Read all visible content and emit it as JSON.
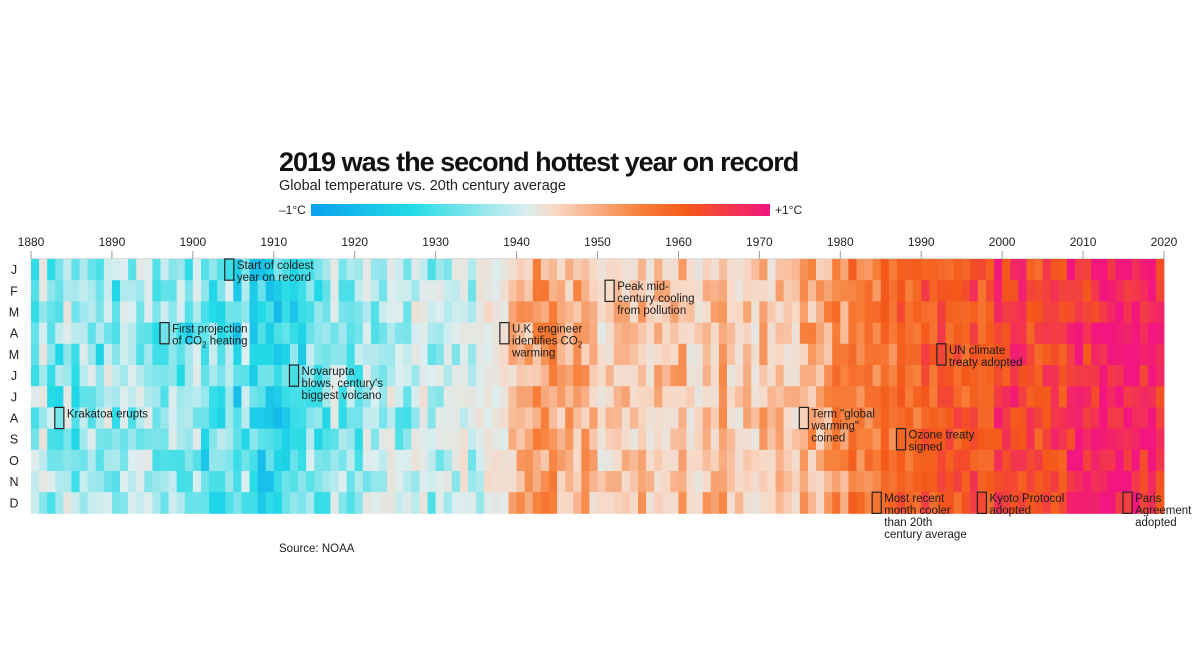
{
  "title": "2019 was the second hottest year on record",
  "subtitle": "Global temperature vs. 20th century average",
  "legend": {
    "min_label": "–1°C",
    "max_label": "+1°C"
  },
  "source": "Source: NOAA",
  "chart_data": {
    "type": "heatmap",
    "title": "2019 was the second hottest year on record",
    "subtitle": "Global temperature vs. 20th century average",
    "x_range": [
      1880,
      2020
    ],
    "x_ticks": [
      1880,
      1890,
      1900,
      1910,
      1920,
      1930,
      1940,
      1950,
      1960,
      1970,
      1980,
      1990,
      2000,
      2010,
      2020
    ],
    "rows": [
      "J",
      "F",
      "M",
      "A",
      "M",
      "J",
      "J",
      "A",
      "S",
      "O",
      "N",
      "D"
    ],
    "color_scale": {
      "min": -1,
      "max": 1,
      "unit": "°C",
      "colors": [
        "#0aa0ee",
        "#23dbe6",
        "#dbeef0",
        "#f8d8c6",
        "#f77f39",
        "#f4581a",
        "#f2167e"
      ]
    },
    "trend_anchors": [
      {
        "year": 1880,
        "anomaly": -0.42
      },
      {
        "year": 1900,
        "anomaly": -0.5
      },
      {
        "year": 1910,
        "anomaly": -0.62
      },
      {
        "year": 1920,
        "anomaly": -0.42
      },
      {
        "year": 1935,
        "anomaly": -0.3
      },
      {
        "year": 1940,
        "anomaly": 0.08
      },
      {
        "year": 1945,
        "anomaly": 0.18
      },
      {
        "year": 1950,
        "anomaly": 0.02
      },
      {
        "year": 1960,
        "anomaly": 0.08
      },
      {
        "year": 1970,
        "anomaly": 0.02
      },
      {
        "year": 1977,
        "anomaly": 0.18
      },
      {
        "year": 1980,
        "anomaly": 0.38
      },
      {
        "year": 1990,
        "anomaly": 0.55
      },
      {
        "year": 2000,
        "anomaly": 0.72
      },
      {
        "year": 2010,
        "anomaly": 0.8
      },
      {
        "year": 2016,
        "anomaly": 0.98
      },
      {
        "year": 2020,
        "anomaly": 0.9
      }
    ],
    "annotations": [
      {
        "year": 1883,
        "row": 7,
        "lines": [
          "Krakatoa erupts"
        ]
      },
      {
        "year": 1896,
        "row": 3,
        "lines": [
          "First projection",
          "of CO2 heating"
        ]
      },
      {
        "year": 1904,
        "row": 0,
        "lines": [
          "Start of coldest",
          "year on record"
        ]
      },
      {
        "year": 1912,
        "row": 5,
        "lines": [
          "Novarupta",
          "blows, century's",
          "biggest volcano"
        ]
      },
      {
        "year": 1938,
        "row": 3,
        "lines": [
          "U.K. engineer",
          "identifies CO2",
          "warming"
        ]
      },
      {
        "year": 1951,
        "row": 1,
        "lines": [
          "Peak mid-",
          "century cooling",
          "from pollution"
        ]
      },
      {
        "year": 1975,
        "row": 7,
        "lines": [
          "Term \"global",
          "warming\"",
          "coined"
        ]
      },
      {
        "year": 1984,
        "row": 11,
        "lines": [
          "Most recent",
          "month cooler",
          "than 20th",
          "century average"
        ]
      },
      {
        "year": 1987,
        "row": 8,
        "lines": [
          "Ozone treaty",
          "signed"
        ]
      },
      {
        "year": 1992,
        "row": 4,
        "lines": [
          "UN climate",
          "treaty adopted"
        ]
      },
      {
        "year": 1997,
        "row": 11,
        "lines": [
          "Kyoto Protocol",
          "adopted"
        ]
      },
      {
        "year": 2015,
        "row": 11,
        "lines": [
          "Paris",
          "Agreement",
          "adopted"
        ]
      }
    ]
  }
}
